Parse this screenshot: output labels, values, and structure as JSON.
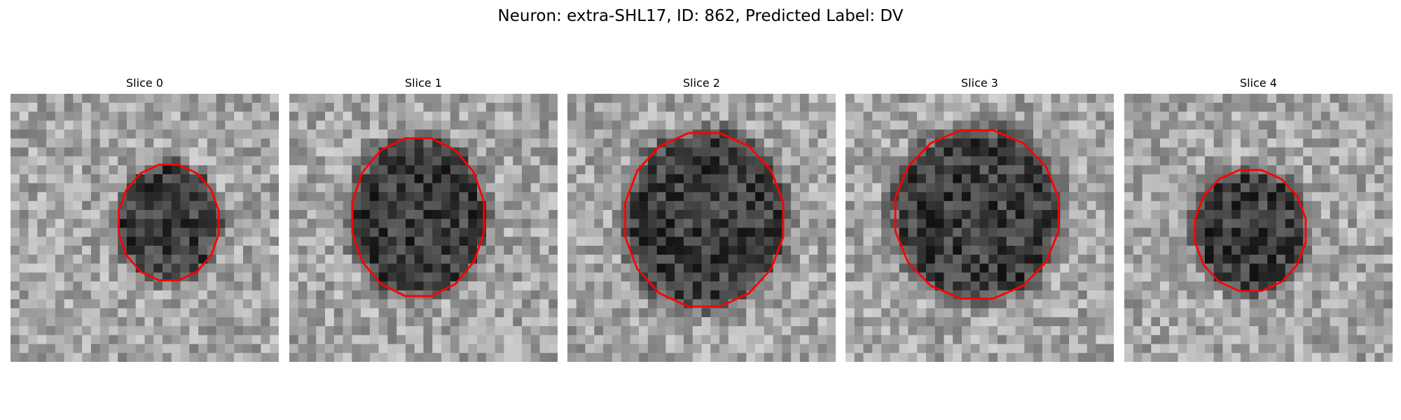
{
  "figure": {
    "title": "Neuron: extra-SHL17, ID: 862, Predicted Label: DV"
  },
  "colors": {
    "contour": "#ff0000",
    "background": "#ffffff"
  },
  "panels": [
    {
      "title": "Slice 0",
      "seed": 11,
      "blob_center": [
        0.59,
        0.48
      ],
      "blob_radius": [
        0.38,
        0.44
      ]
    },
    {
      "title": "Slice 1",
      "seed": 23,
      "blob_center": [
        0.48,
        0.46
      ],
      "blob_radius": [
        0.5,
        0.6
      ]
    },
    {
      "title": "Slice 2",
      "seed": 37,
      "blob_center": [
        0.51,
        0.47
      ],
      "blob_radius": [
        0.6,
        0.66
      ]
    },
    {
      "title": "Slice 3",
      "seed": 41,
      "blob_center": [
        0.49,
        0.45
      ],
      "blob_radius": [
        0.62,
        0.64
      ]
    },
    {
      "title": "Slice 4",
      "seed": 53,
      "blob_center": [
        0.47,
        0.51
      ],
      "blob_radius": [
        0.42,
        0.46
      ]
    }
  ]
}
